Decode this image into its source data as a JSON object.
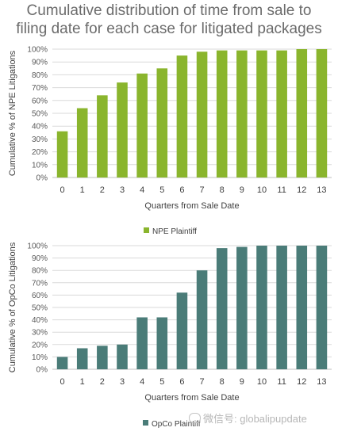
{
  "title_lines": [
    "Cumulative distribution of time from sale to",
    "filing date for each case for litigated packages"
  ],
  "watermark": "微信号: globalipupdate",
  "chart_data": [
    {
      "type": "bar",
      "categories": [
        "0",
        "1",
        "2",
        "3",
        "4",
        "5",
        "6",
        "7",
        "8",
        "9",
        "10",
        "11",
        "12",
        "13"
      ],
      "series": [
        {
          "name": "NPE Plaintiff",
          "values": [
            36,
            54,
            64,
            74,
            81,
            85,
            95,
            98,
            99,
            99,
            99,
            99,
            100,
            100
          ]
        }
      ],
      "ylabel": "Cumulative % of NPE Litigations",
      "xlabel": "Quarters from Sale Date",
      "ylim": [
        0,
        100
      ],
      "yticks": [
        0,
        10,
        20,
        30,
        40,
        50,
        60,
        70,
        80,
        90,
        100
      ],
      "color": "#8ab52d",
      "grid": true,
      "legend": "bottom"
    },
    {
      "type": "bar",
      "categories": [
        "0",
        "1",
        "2",
        "3",
        "4",
        "5",
        "6",
        "7",
        "8",
        "9",
        "10",
        "11",
        "12",
        "13"
      ],
      "series": [
        {
          "name": "OpCo Plaintiff",
          "values": [
            10,
            17,
            19,
            20,
            42,
            42,
            62,
            80,
            98,
            99,
            100,
            100,
            100,
            100
          ]
        }
      ],
      "ylabel": "Cumulative % of OpCo Litigations",
      "xlabel": "Quarters from Sale Date",
      "ylim": [
        0,
        100
      ],
      "yticks": [
        0,
        10,
        20,
        30,
        40,
        50,
        60,
        70,
        80,
        90,
        100
      ],
      "color": "#4a7c78",
      "grid": true,
      "legend": "bottom"
    }
  ]
}
